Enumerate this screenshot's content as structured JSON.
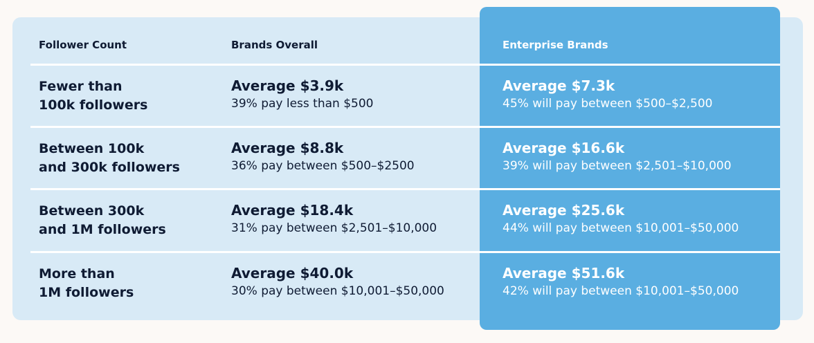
{
  "table": {
    "header": [
      "Follower Count",
      "Brands Overall",
      "Enterprise Brands"
    ],
    "rows": [
      {
        "label": [
          "Fewer than",
          "100k followers"
        ],
        "overall": {
          "average": "Average $3.9k",
          "detail": "39% pay less than $500"
        },
        "enterprise": {
          "average": "Average $7.3k",
          "detail": "45% will pay between $500–$2,500"
        }
      },
      {
        "label": [
          "Between 100k",
          "and 300k followers"
        ],
        "overall": {
          "average": "Average $8.8k",
          "detail": "36% pay between $500–$2500"
        },
        "enterprise": {
          "average": "Average $16.6k",
          "detail": "39% will pay between $2,501–$10,000"
        }
      },
      {
        "label": [
          "Between 300k",
          "and 1M followers"
        ],
        "overall": {
          "average": "Average $18.4k",
          "detail": "31% pay between $2,501–$10,000"
        },
        "enterprise": {
          "average": "Average $25.6k",
          "detail": "44% will pay between $10,001–$50,000"
        }
      },
      {
        "label": [
          "More than",
          "1M followers"
        ],
        "overall": {
          "average": "Average $40.0k",
          "detail": "30% pay between $10,001–$50,000"
        },
        "enterprise": {
          "average": "Average $51.6k",
          "detail": "42% will pay between $10,001–$50,000"
        }
      }
    ]
  }
}
